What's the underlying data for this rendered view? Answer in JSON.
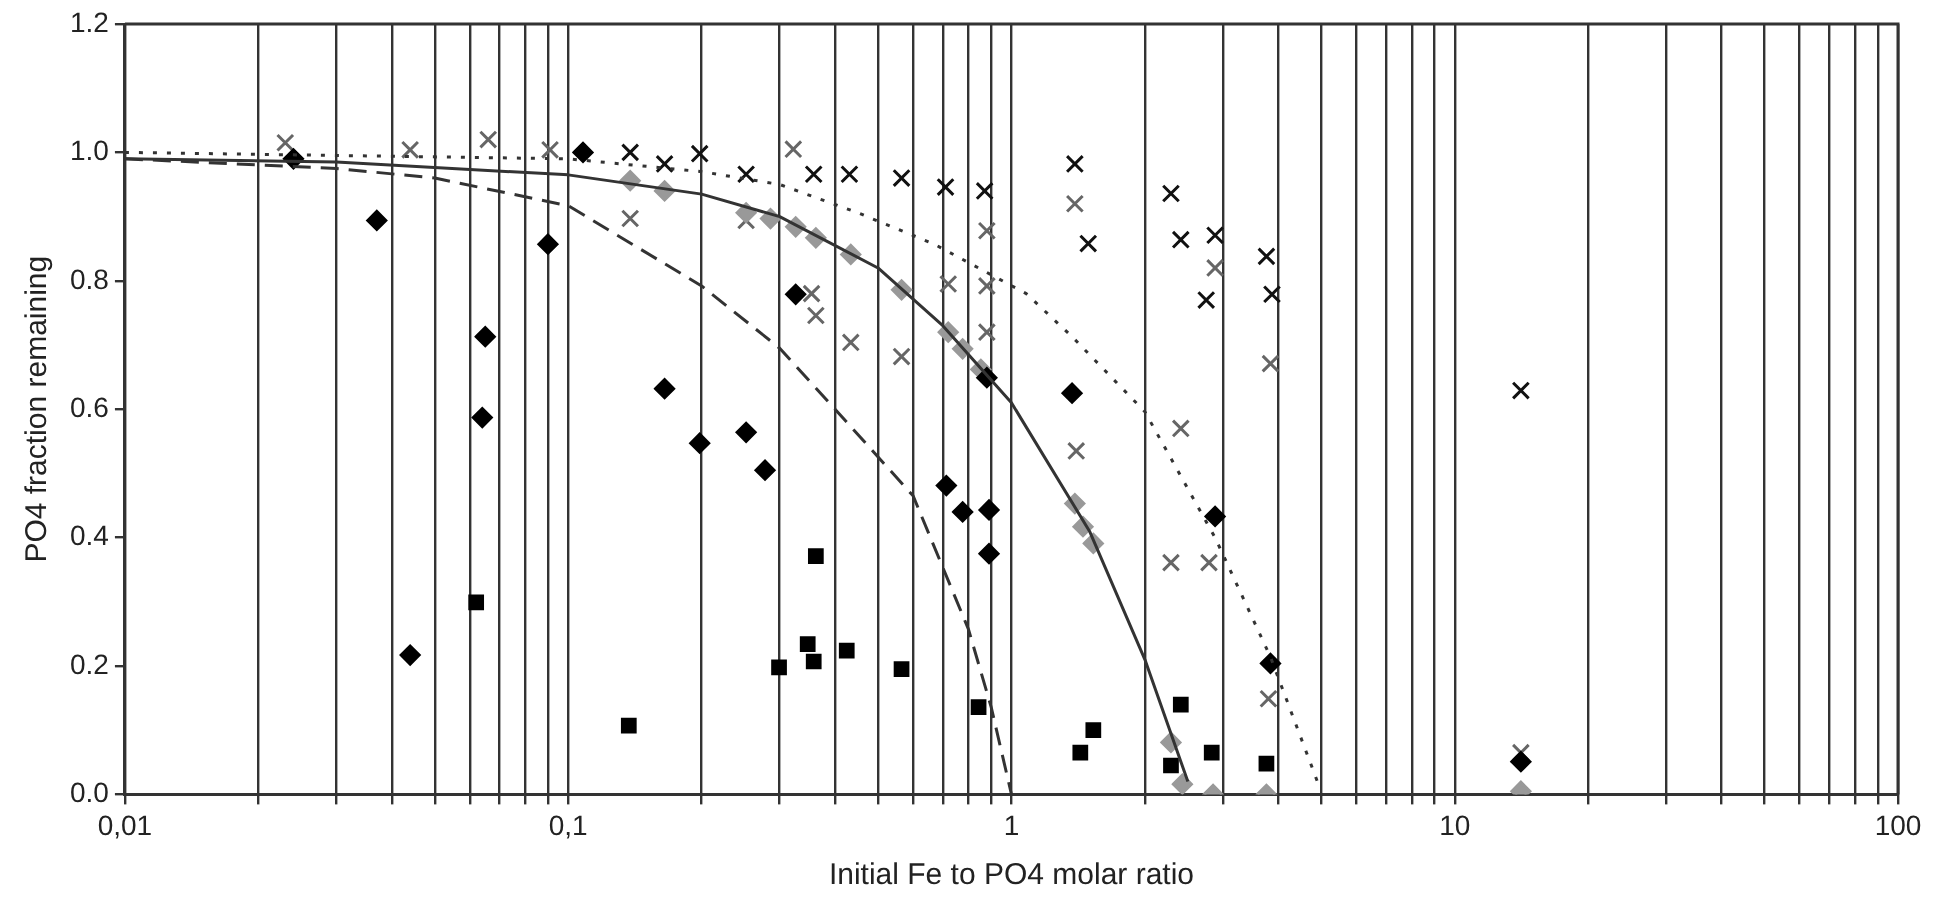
{
  "chart_data": {
    "type": "scatter",
    "xlabel": "Initial Fe to PO4 molar ratio",
    "ylabel": "PO4 fraction remaining",
    "log": "x",
    "grid": "x",
    "legend": false,
    "xlim": [
      0.01,
      100
    ],
    "ylim": [
      0,
      1.2
    ],
    "xticks": [
      {
        "value": 0.01,
        "label": "0,01"
      },
      {
        "value": 0.02,
        "label": null
      },
      {
        "value": 0.03,
        "label": null
      },
      {
        "value": 0.04,
        "label": null
      },
      {
        "value": 0.05,
        "label": null
      },
      {
        "value": 0.06,
        "label": null
      },
      {
        "value": 0.07,
        "label": null
      },
      {
        "value": 0.08,
        "label": null
      },
      {
        "value": 0.09,
        "label": null
      },
      {
        "value": 0.1,
        "label": "0,1"
      },
      {
        "value": 0.2,
        "label": null
      },
      {
        "value": 0.3,
        "label": null
      },
      {
        "value": 0.4,
        "label": null
      },
      {
        "value": 0.5,
        "label": null
      },
      {
        "value": 0.6,
        "label": null
      },
      {
        "value": 0.7,
        "label": null
      },
      {
        "value": 0.8,
        "label": null
      },
      {
        "value": 0.9,
        "label": null
      },
      {
        "value": 1,
        "label": "1"
      },
      {
        "value": 2,
        "label": null
      },
      {
        "value": 3,
        "label": null
      },
      {
        "value": 4,
        "label": null
      },
      {
        "value": 5,
        "label": null
      },
      {
        "value": 6,
        "label": null
      },
      {
        "value": 7,
        "label": null
      },
      {
        "value": 8,
        "label": null
      },
      {
        "value": 9,
        "label": null
      },
      {
        "value": 10,
        "label": "10"
      },
      {
        "value": 20,
        "label": null
      },
      {
        "value": 30,
        "label": null
      },
      {
        "value": 40,
        "label": null
      },
      {
        "value": 50,
        "label": null
      },
      {
        "value": 60,
        "label": null
      },
      {
        "value": 70,
        "label": null
      },
      {
        "value": 80,
        "label": null
      },
      {
        "value": 90,
        "label": null
      },
      {
        "value": 100,
        "label": "100"
      }
    ],
    "yticks": [
      {
        "value": 0,
        "label": "0.0"
      },
      {
        "value": 0.2,
        "label": "0.2"
      },
      {
        "value": 0.4,
        "label": "0.4"
      },
      {
        "value": 0.6,
        "label": "0.6"
      },
      {
        "value": 0.8,
        "label": "0.8"
      },
      {
        "value": 1,
        "label": "1.0"
      },
      {
        "value": 1.2,
        "label": "1.2"
      }
    ],
    "series": [
      {
        "type": "line",
        "marker": "none",
        "line_style": "dotted",
        "color": "#333333",
        "x": [
          0.01,
          0.1,
          0.2,
          0.3,
          0.45,
          0.67,
          1.08,
          1.37,
          2,
          2.88,
          3.84,
          4.9
        ],
        "values": [
          1.0,
          0.99,
          0.97,
          0.95,
          0.906,
          0.857,
          0.78,
          0.713,
          0.596,
          0.4,
          0.214,
          0.02
        ]
      },
      {
        "type": "line",
        "marker": "none",
        "line_style": "solid",
        "color": "#333333",
        "x": [
          0.01,
          0.03,
          0.1,
          0.2,
          0.3,
          0.5,
          0.7,
          1,
          1.5,
          2,
          2.5
        ],
        "values": [
          0.99,
          0.985,
          0.965,
          0.935,
          0.9,
          0.82,
          0.73,
          0.61,
          0.41,
          0.21,
          0.02
        ]
      },
      {
        "type": "line",
        "marker": "none",
        "line_style": "dashed",
        "color": "#333333",
        "x": [
          0.01,
          0.03,
          0.05,
          0.1,
          0.2,
          0.3,
          0.4,
          0.6,
          0.8,
          0.9,
          1
        ],
        "values": [
          0.99,
          0.975,
          0.96,
          0.917,
          0.792,
          0.695,
          0.6,
          0.465,
          0.257,
          0.136,
          0
        ]
      },
      {
        "marker": "diamond",
        "color": "#000000",
        "x": [
          0.024,
          0.037,
          0.044,
          0.065,
          0.064,
          0.09,
          0.108,
          0.165,
          0.198,
          0.252,
          0.278,
          0.326,
          0.713,
          0.776,
          0.89,
          0.89,
          0.88,
          1.37,
          2.88,
          3.84,
          14.1
        ],
        "values": [
          0.99,
          0.894,
          0.217,
          0.713,
          0.587,
          0.857,
          1.0,
          0.632,
          0.547,
          0.564,
          0.505,
          0.779,
          0.481,
          0.44,
          0.443,
          0.375,
          0.649,
          0.625,
          0.433,
          0.204,
          0.051
        ]
      },
      {
        "marker": "square",
        "color": "#000000",
        "x": [
          0.062,
          0.137,
          0.362,
          0.299,
          0.347,
          0.358,
          0.425,
          0.565,
          0.843,
          1.53,
          1.43,
          2.41,
          2.29,
          2.83,
          3.76
        ],
        "values": [
          0.299,
          0.107,
          0.371,
          0.198,
          0.234,
          0.207,
          0.224,
          0.195,
          0.136,
          0.1,
          0.065,
          0.14,
          0.045,
          0.065,
          0.048
        ]
      },
      {
        "marker": "diamond",
        "color": "#999999",
        "x": [
          0.138,
          0.165,
          0.252,
          0.286,
          0.326,
          0.362,
          0.434,
          0.565,
          0.72,
          0.776,
          0.853,
          1.39,
          1.45,
          1.53,
          2.29,
          2.43,
          2.85,
          3.76,
          14.1
        ],
        "values": [
          0.956,
          0.94,
          0.906,
          0.897,
          0.884,
          0.867,
          0.841,
          0.786,
          0.72,
          0.694,
          0.662,
          0.453,
          0.417,
          0.391,
          0.081,
          0.016,
          0,
          0,
          0.005
        ]
      },
      {
        "marker": "cross",
        "color": "#666666",
        "x": [
          0.023,
          0.044,
          0.066,
          0.091,
          0.138,
          0.252,
          0.322,
          0.354,
          0.362,
          0.434,
          0.565,
          0.72,
          0.88,
          0.88,
          0.88,
          1.39,
          1.4,
          2.41,
          2.29,
          2.79,
          2.88,
          3.84,
          3.8,
          14.1
        ],
        "values": [
          1.015,
          1.004,
          1.02,
          1.004,
          0.897,
          0.894,
          1.005,
          0.78,
          0.746,
          0.704,
          0.682,
          0.795,
          0.792,
          0.72,
          0.878,
          0.92,
          0.535,
          0.57,
          0.361,
          0.361,
          0.82,
          0.671,
          0.149,
          0.065
        ]
      },
      {
        "marker": "cross",
        "color": "#111111",
        "x": [
          0.165,
          0.138,
          0.198,
          0.252,
          0.358,
          0.431,
          0.565,
          0.71,
          0.87,
          1.39,
          1.49,
          2.29,
          2.41,
          2.88,
          2.75,
          3.76,
          3.87,
          14.1
        ],
        "values": [
          0.982,
          1.0,
          0.998,
          0.966,
          0.966,
          0.966,
          0.96,
          0.946,
          0.94,
          0.982,
          0.858,
          0.936,
          0.864,
          0.871,
          0.77,
          0.838,
          0.779,
          0.629
        ]
      }
    ]
  }
}
